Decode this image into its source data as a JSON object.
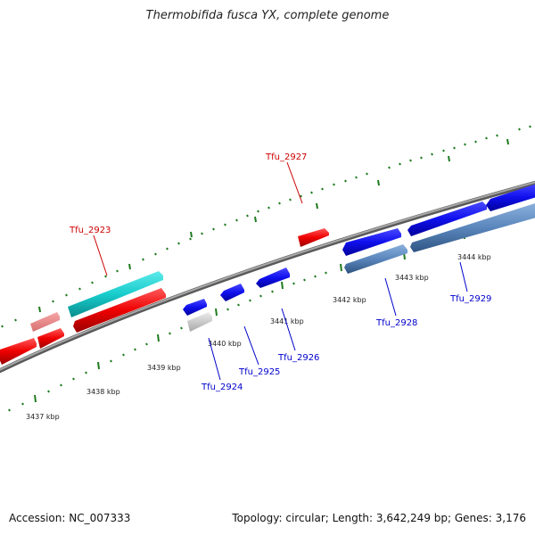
{
  "title": "Thermobifida fusca YX, complete genome",
  "footer": {
    "accession": "Accession: NC_007333",
    "summary": "Topology: circular; Length: 3,642,249 bp; Genes: 3,176"
  },
  "colors": {
    "backbone": "#8a8a8a",
    "tick": "#1e7a1e",
    "label_red": "#cc0000",
    "label_blue": "#0000cc"
  },
  "ticks": [
    "3437 kbp",
    "3438 kbp",
    "3439 kbp",
    "3440 kbp",
    "3441 kbp",
    "3442 kbp",
    "3443 kbp",
    "3444 kbp"
  ],
  "genes": [
    {
      "name": "Tfu_2923",
      "color": "#cc0000"
    },
    {
      "name": "Tfu_2927",
      "color": "#cc0000"
    },
    {
      "name": "Tfu_2924",
      "color": "#0000cc"
    },
    {
      "name": "Tfu_2925",
      "color": "#0000cc"
    },
    {
      "name": "Tfu_2926",
      "color": "#0000cc"
    },
    {
      "name": "Tfu_2928",
      "color": "#0000cc"
    },
    {
      "name": "Tfu_2929",
      "color": "#0000cc"
    }
  ]
}
